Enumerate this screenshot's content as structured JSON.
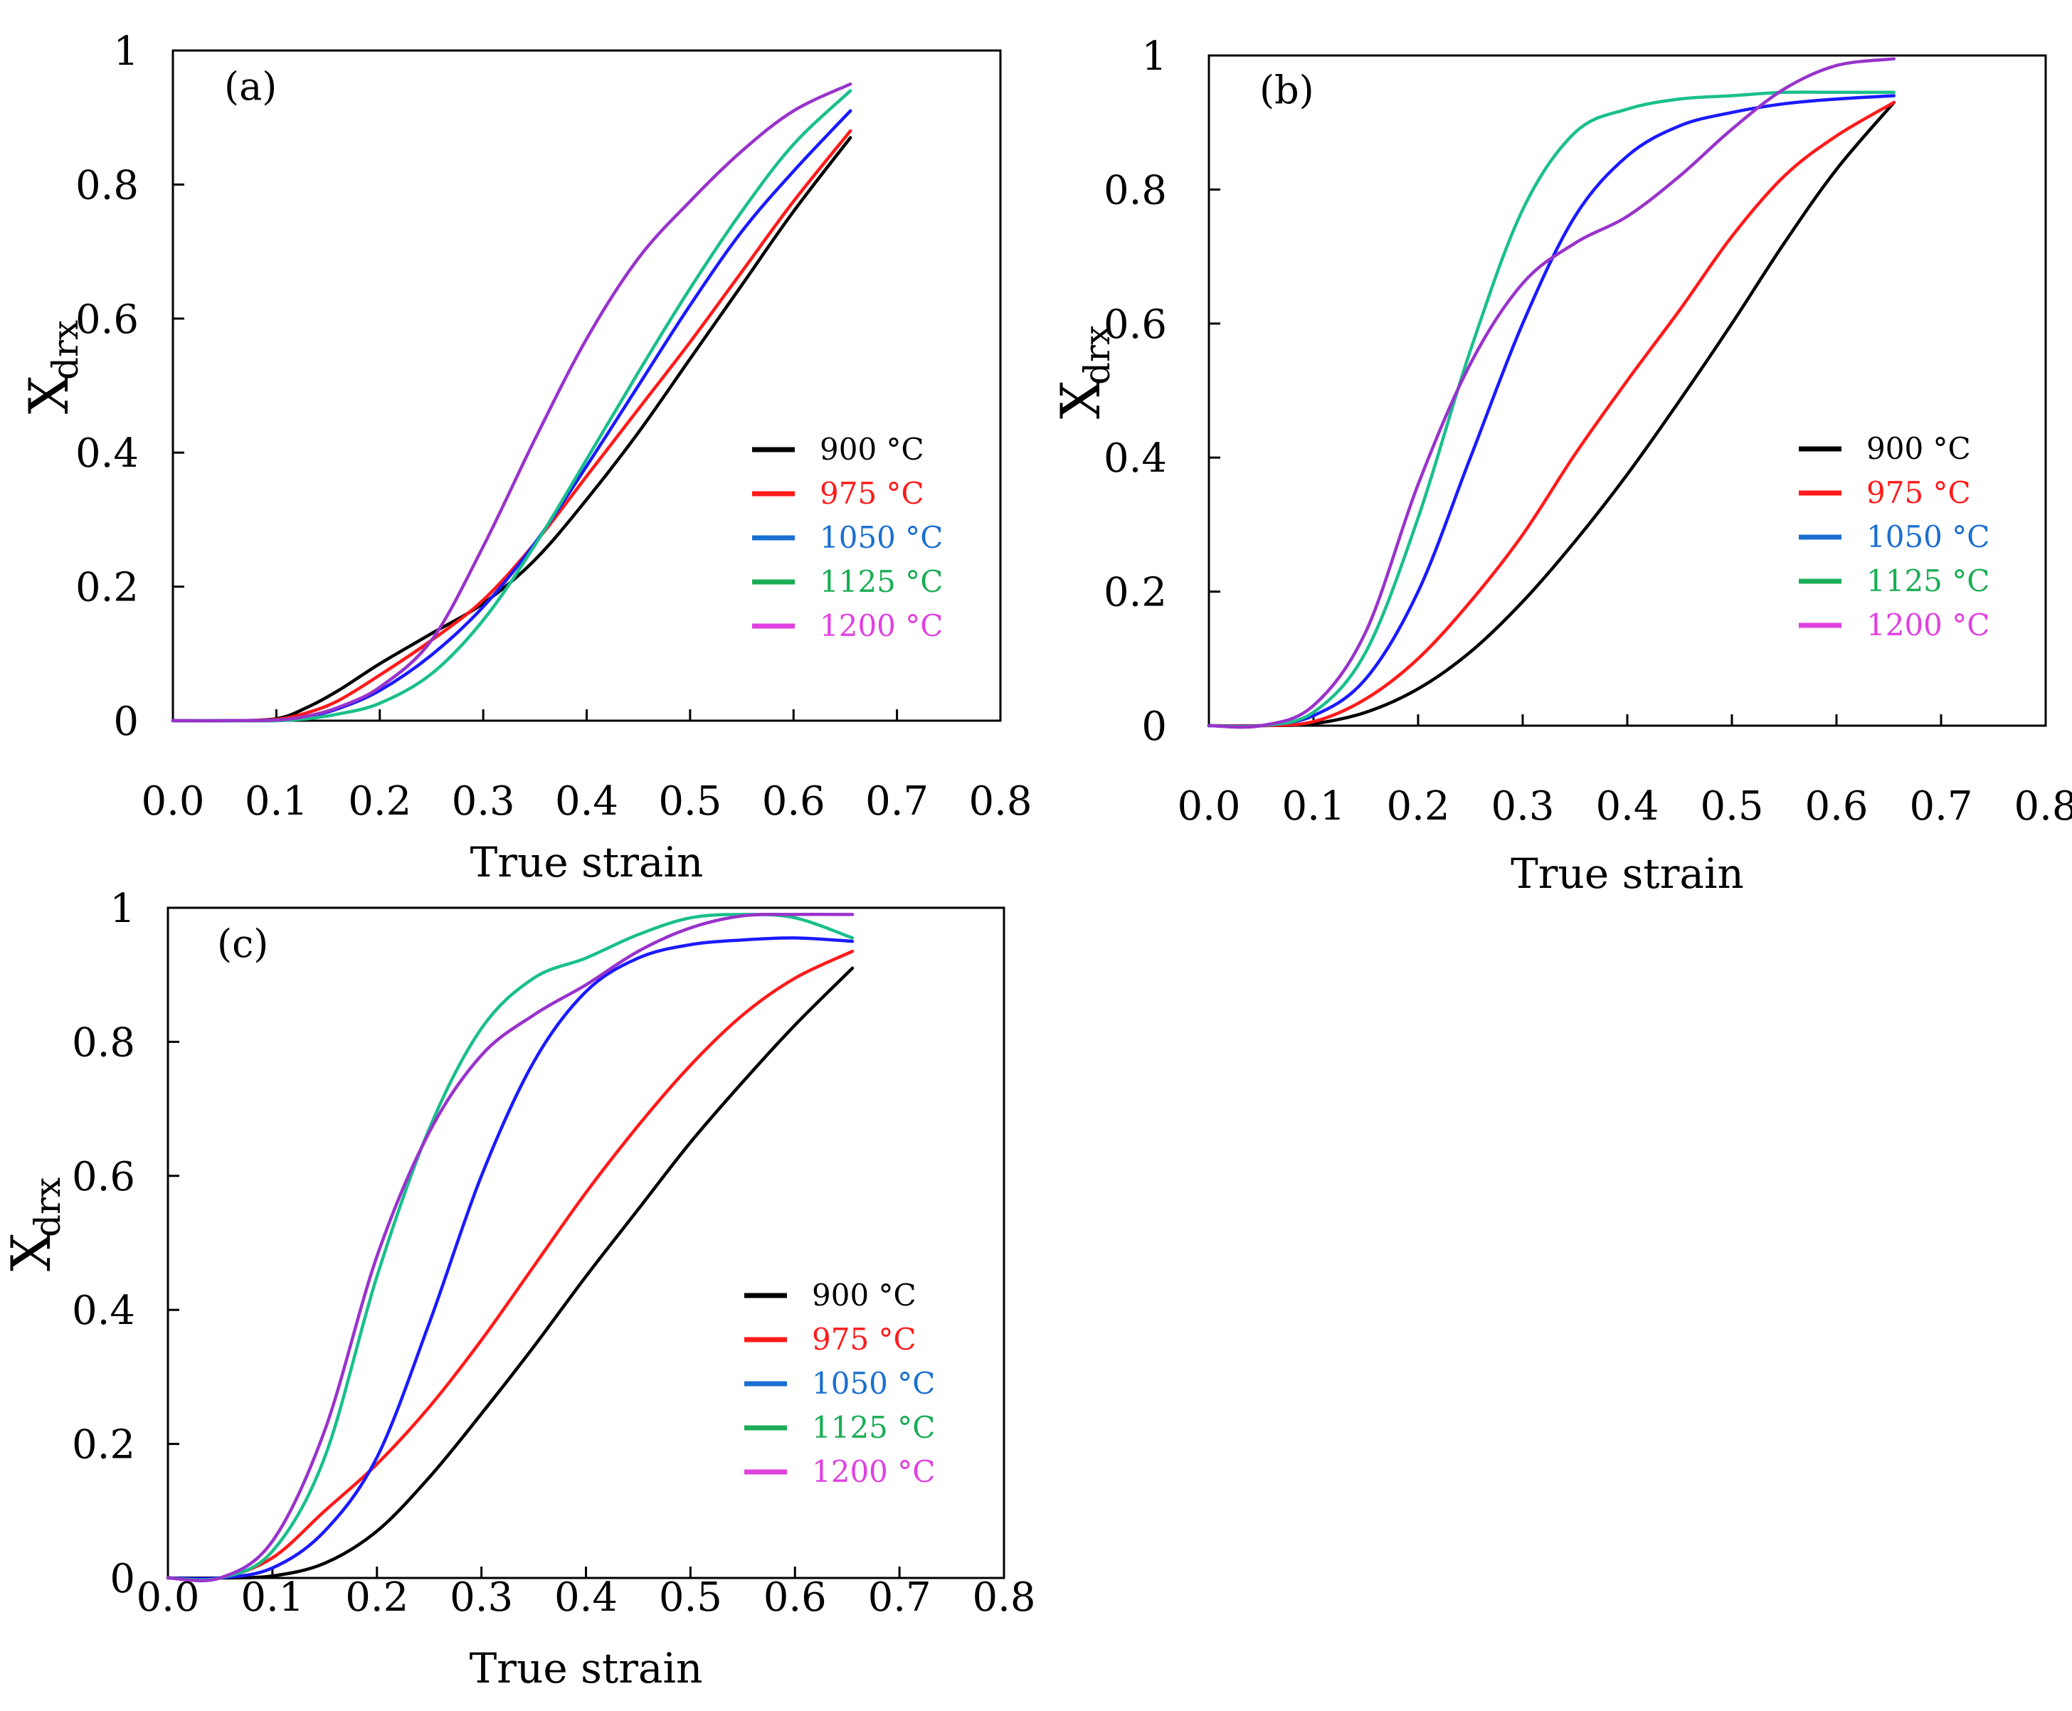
{
  "colors": {
    "900": "#000000",
    "975": "#ff1a1a",
    "1050": "#1a1aff",
    "1125": "#1abf8c",
    "1200": "#9933cc",
    "legend_1050": "#1a6fd1",
    "legend_1125": "#1aad55",
    "legend_1200": "#e040e0"
  },
  "chart_data": [
    {
      "type": "line",
      "panel_label": "(a)",
      "xlabel": "True strain",
      "ylabel_main": "X",
      "ylabel_sub": "drx",
      "xlim": [
        0.0,
        0.8
      ],
      "ylim": [
        0,
        1
      ],
      "x_ticks": [
        "0.0",
        "0.1",
        "0.2",
        "0.3",
        "0.4",
        "0.5",
        "0.6",
        "0.7",
        "0.8"
      ],
      "y_ticks": [
        "0",
        "0.2",
        "0.4",
        "0.6",
        "0.8",
        "1"
      ],
      "legend_position": "center-right",
      "series": [
        {
          "name": "900 °C",
          "x": [
            0.0,
            0.05,
            0.1,
            0.13,
            0.16,
            0.2,
            0.25,
            0.3,
            0.35,
            0.4,
            0.45,
            0.5,
            0.55,
            0.6,
            0.655
          ],
          "y": [
            0,
            0,
            0.003,
            0.02,
            0.045,
            0.085,
            0.13,
            0.175,
            0.24,
            0.33,
            0.43,
            0.54,
            0.65,
            0.76,
            0.87
          ]
        },
        {
          "name": "975 °C",
          "x": [
            0.0,
            0.05,
            0.1,
            0.13,
            0.16,
            0.2,
            0.25,
            0.3,
            0.35,
            0.4,
            0.45,
            0.5,
            0.55,
            0.6,
            0.655
          ],
          "y": [
            0,
            0,
            0.002,
            0.012,
            0.03,
            0.068,
            0.12,
            0.18,
            0.265,
            0.365,
            0.465,
            0.565,
            0.67,
            0.775,
            0.88
          ]
        },
        {
          "name": "1050 °C",
          "x": [
            0.0,
            0.05,
            0.1,
            0.13,
            0.16,
            0.2,
            0.25,
            0.3,
            0.35,
            0.4,
            0.45,
            0.5,
            0.55,
            0.6,
            0.655
          ],
          "y": [
            0,
            0,
            0.001,
            0.006,
            0.018,
            0.045,
            0.098,
            0.17,
            0.265,
            0.38,
            0.5,
            0.62,
            0.73,
            0.82,
            0.91
          ]
        },
        {
          "name": "1125 °C",
          "x": [
            0.0,
            0.05,
            0.1,
            0.13,
            0.16,
            0.2,
            0.25,
            0.3,
            0.35,
            0.4,
            0.45,
            0.5,
            0.55,
            0.6,
            0.655
          ],
          "y": [
            0,
            0,
            0,
            0.003,
            0.01,
            0.026,
            0.07,
            0.15,
            0.262,
            0.39,
            0.52,
            0.645,
            0.76,
            0.86,
            0.94
          ]
        },
        {
          "name": "1200 °C",
          "x": [
            0.0,
            0.05,
            0.1,
            0.13,
            0.16,
            0.2,
            0.25,
            0.3,
            0.35,
            0.4,
            0.45,
            0.5,
            0.55,
            0.6,
            0.655
          ],
          "y": [
            0,
            0,
            0.001,
            0.007,
            0.02,
            0.05,
            0.12,
            0.26,
            0.42,
            0.57,
            0.69,
            0.775,
            0.85,
            0.91,
            0.95
          ]
        }
      ]
    },
    {
      "type": "line",
      "panel_label": "(b)",
      "xlabel": "True strain",
      "ylabel_main": "X",
      "ylabel_sub": "drx",
      "xlim": [
        0.0,
        0.8
      ],
      "ylim": [
        0,
        1
      ],
      "x_ticks": [
        "0.0",
        "0.1",
        "0.2",
        "0.3",
        "0.4",
        "0.5",
        "0.6",
        "0.7",
        "0.8"
      ],
      "y_ticks": [
        "0",
        "0.2",
        "0.4",
        "0.6",
        "0.8",
        "1"
      ],
      "legend_position": "center-right",
      "series": [
        {
          "name": "900 °C",
          "x": [
            0.0,
            0.05,
            0.1,
            0.15,
            0.2,
            0.25,
            0.3,
            0.35,
            0.4,
            0.45,
            0.5,
            0.55,
            0.6,
            0.655
          ],
          "y": [
            0,
            0,
            0.003,
            0.02,
            0.055,
            0.11,
            0.185,
            0.275,
            0.375,
            0.485,
            0.6,
            0.72,
            0.83,
            0.93
          ]
        },
        {
          "name": "975 °C",
          "x": [
            0.0,
            0.05,
            0.1,
            0.15,
            0.2,
            0.25,
            0.3,
            0.35,
            0.4,
            0.45,
            0.5,
            0.55,
            0.6,
            0.655
          ],
          "y": [
            0,
            0,
            0.006,
            0.04,
            0.1,
            0.185,
            0.285,
            0.405,
            0.515,
            0.62,
            0.73,
            0.82,
            0.88,
            0.93
          ]
        },
        {
          "name": "1050 °C",
          "x": [
            0.0,
            0.05,
            0.1,
            0.15,
            0.2,
            0.25,
            0.3,
            0.35,
            0.4,
            0.45,
            0.5,
            0.55,
            0.6,
            0.655
          ],
          "y": [
            0,
            0,
            0.015,
            0.07,
            0.2,
            0.4,
            0.6,
            0.76,
            0.85,
            0.895,
            0.915,
            0.928,
            0.935,
            0.94
          ]
        },
        {
          "name": "1125 °C",
          "x": [
            0.0,
            0.05,
            0.1,
            0.15,
            0.2,
            0.25,
            0.3,
            0.35,
            0.4,
            0.45,
            0.5,
            0.55,
            0.6,
            0.655
          ],
          "y": [
            0,
            0,
            0.02,
            0.11,
            0.31,
            0.56,
            0.77,
            0.885,
            0.92,
            0.935,
            0.94,
            0.945,
            0.945,
            0.945
          ]
        },
        {
          "name": "1200 °C",
          "x": [
            0.0,
            0.05,
            0.1,
            0.15,
            0.2,
            0.25,
            0.3,
            0.35,
            0.4,
            0.45,
            0.5,
            0.55,
            0.6,
            0.655
          ],
          "y": [
            0,
            0,
            0.03,
            0.14,
            0.36,
            0.54,
            0.66,
            0.72,
            0.76,
            0.82,
            0.89,
            0.95,
            0.985,
            0.995
          ]
        }
      ]
    },
    {
      "type": "line",
      "panel_label": "(c)",
      "xlabel": "True strain",
      "ylabel_main": "X",
      "ylabel_sub": "drx",
      "xlim": [
        0.0,
        0.8
      ],
      "ylim": [
        0,
        1
      ],
      "x_ticks": [
        "0.0",
        "0.1",
        "0.2",
        "0.3",
        "0.4",
        "0.5",
        "0.6",
        "0.7",
        "0.8"
      ],
      "y_ticks": [
        "0",
        "0.2",
        "0.4",
        "0.6",
        "0.8",
        "1"
      ],
      "legend_position": "center-right",
      "series": [
        {
          "name": "900 °C",
          "x": [
            0.0,
            0.05,
            0.1,
            0.15,
            0.2,
            0.25,
            0.3,
            0.35,
            0.4,
            0.45,
            0.5,
            0.55,
            0.6,
            0.655
          ],
          "y": [
            0,
            0,
            0.003,
            0.022,
            0.07,
            0.15,
            0.245,
            0.345,
            0.45,
            0.55,
            0.65,
            0.74,
            0.825,
            0.91
          ]
        },
        {
          "name": "975 °C",
          "x": [
            0.0,
            0.05,
            0.1,
            0.15,
            0.2,
            0.25,
            0.3,
            0.35,
            0.4,
            0.45,
            0.5,
            0.55,
            0.6,
            0.655
          ],
          "y": [
            0,
            0,
            0.03,
            0.1,
            0.17,
            0.255,
            0.355,
            0.465,
            0.575,
            0.675,
            0.765,
            0.84,
            0.895,
            0.935
          ]
        },
        {
          "name": "1050 °C",
          "x": [
            0.0,
            0.05,
            0.1,
            0.15,
            0.2,
            0.25,
            0.3,
            0.35,
            0.4,
            0.45,
            0.5,
            0.55,
            0.6,
            0.655
          ],
          "y": [
            0,
            0,
            0.015,
            0.07,
            0.18,
            0.38,
            0.6,
            0.77,
            0.875,
            0.925,
            0.945,
            0.952,
            0.955,
            0.95
          ]
        },
        {
          "name": "1125 °C",
          "x": [
            0.0,
            0.05,
            0.1,
            0.15,
            0.2,
            0.25,
            0.3,
            0.35,
            0.4,
            0.45,
            0.5,
            0.55,
            0.6,
            0.655
          ],
          "y": [
            0,
            0,
            0.04,
            0.18,
            0.45,
            0.67,
            0.82,
            0.895,
            0.925,
            0.96,
            0.985,
            0.99,
            0.985,
            0.955
          ]
        },
        {
          "name": "1200 °C",
          "x": [
            0.0,
            0.05,
            0.1,
            0.15,
            0.2,
            0.25,
            0.3,
            0.35,
            0.4,
            0.45,
            0.5,
            0.55,
            0.6,
            0.655
          ],
          "y": [
            0,
            0,
            0.055,
            0.22,
            0.48,
            0.665,
            0.78,
            0.84,
            0.885,
            0.935,
            0.97,
            0.988,
            0.99,
            0.99
          ]
        }
      ]
    }
  ]
}
